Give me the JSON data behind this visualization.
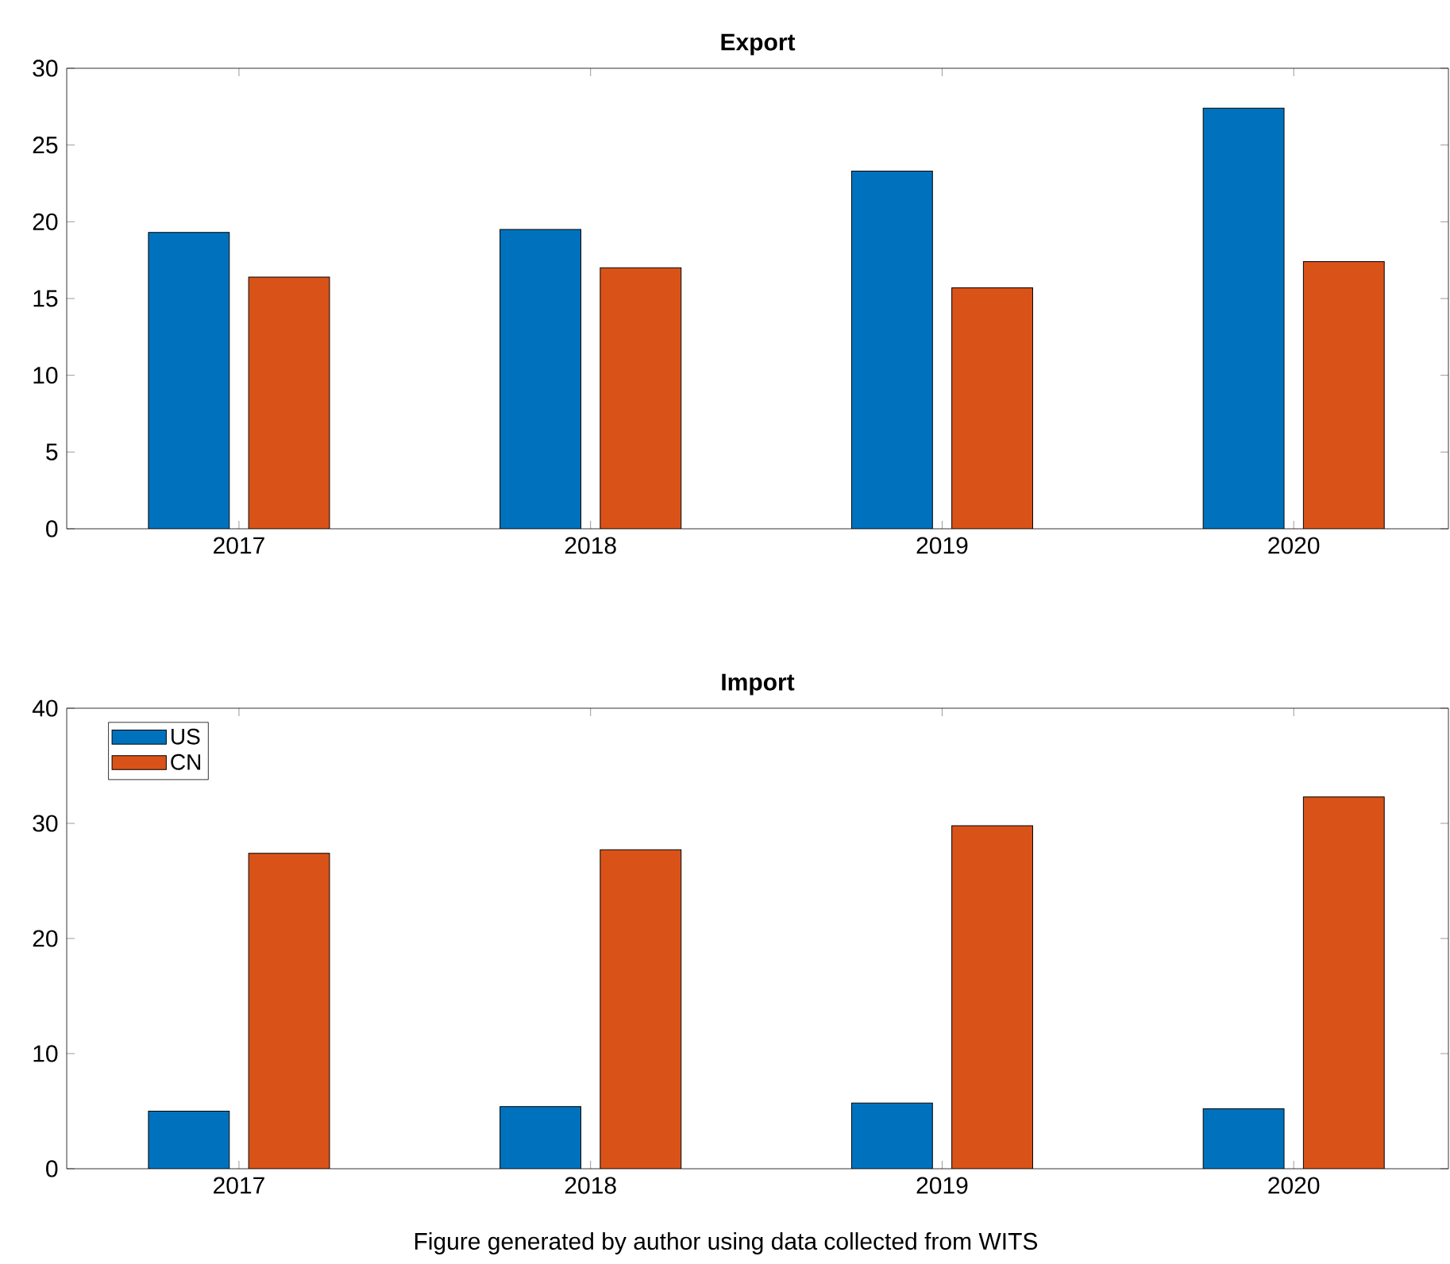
{
  "chart_data": [
    {
      "type": "bar",
      "title": "Export",
      "categories": [
        "2017",
        "2018",
        "2019",
        "2020"
      ],
      "series": [
        {
          "color": "#0072bd",
          "values": [
            19.3,
            19.5,
            23.3,
            27.4
          ]
        },
        {
          "color": "#d95319",
          "values": [
            16.4,
            17.0,
            15.7,
            17.4
          ]
        }
      ],
      "ylim": [
        0,
        30
      ],
      "yticks": [
        0,
        5,
        10,
        15,
        20,
        25,
        30
      ]
    },
    {
      "type": "bar",
      "title": "Import",
      "categories": [
        "2017",
        "2018",
        "2019",
        "2020"
      ],
      "series": [
        {
          "name": "US",
          "color": "#0072bd",
          "values": [
            5.0,
            5.4,
            5.7,
            5.2
          ]
        },
        {
          "name": "CN",
          "color": "#d95319",
          "values": [
            27.4,
            27.7,
            29.8,
            32.3
          ]
        }
      ],
      "ylim": [
        0,
        40
      ],
      "yticks": [
        0,
        10,
        20,
        30,
        40
      ],
      "legend": "top left",
      "annotations": [
        "Figure generated by author using data collected from WITS"
      ]
    }
  ]
}
